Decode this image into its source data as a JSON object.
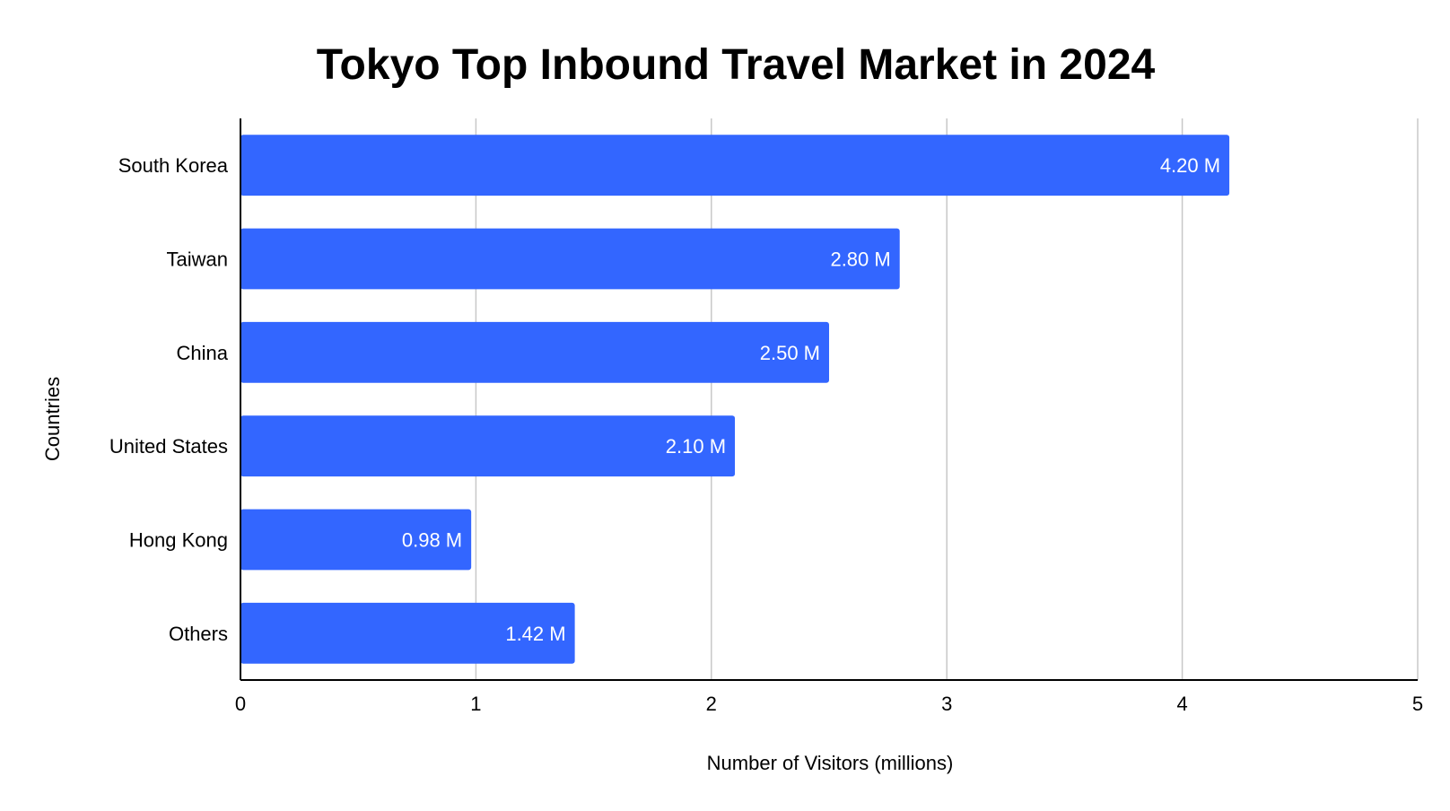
{
  "chart_data": {
    "type": "bar",
    "orientation": "horizontal",
    "title": "Tokyo Top Inbound Travel Market in 2024",
    "xlabel": "Number of Visitors (millions)",
    "ylabel": "Countries",
    "categories": [
      "South Korea",
      "Taiwan",
      "China",
      "United States",
      "Hong Kong",
      "Others"
    ],
    "values": [
      4.2,
      2.8,
      2.5,
      2.1,
      0.98,
      1.42
    ],
    "data_labels": [
      "4.20 M",
      "2.80 M",
      "2.50 M",
      "2.10 M",
      "0.98 M",
      "1.42 M"
    ],
    "xlim": [
      0,
      5
    ],
    "xticks": [
      "0",
      "1",
      "2",
      "3",
      "4",
      "5"
    ],
    "grid": true,
    "legend": "none",
    "bar_color": "#3366ff"
  }
}
